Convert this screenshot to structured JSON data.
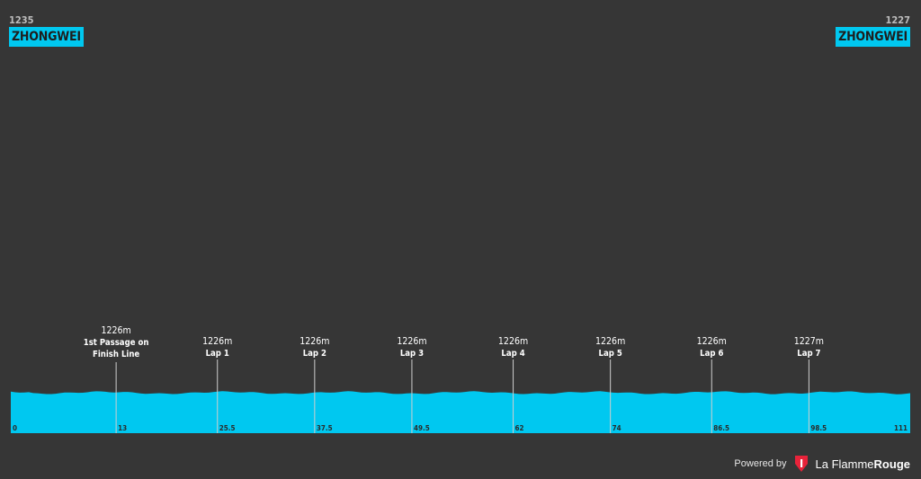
{
  "start": {
    "altitude": "1235",
    "town": "ZHONGWEI"
  },
  "finish": {
    "altitude": "1227",
    "town": "ZHONGWEI"
  },
  "footer": {
    "powered": "Powered by",
    "brand_regular": "La Flamme",
    "brand_bold": "Rouge"
  },
  "colors": {
    "background": "#363636",
    "profile": "#00c8f0",
    "marker_line": "#cfcfcf",
    "logo": "#e8233a"
  },
  "chart_data": {
    "type": "area",
    "xlim": [
      0,
      111
    ],
    "x_ticks": [
      "0",
      "13",
      "25.5",
      "37.5",
      "49.5",
      "62",
      "74",
      "86.5",
      "98.5",
      "111"
    ],
    "x_tick_values": [
      0,
      13,
      25.5,
      37.5,
      49.5,
      62,
      74,
      86.5,
      98.5,
      111
    ],
    "checkpoints": [
      {
        "km": 13,
        "altitude": "1226m",
        "name_lines": [
          "1st Passage on",
          "Finish Line"
        ]
      },
      {
        "km": 25.5,
        "altitude": "1226m",
        "name_lines": [
          "Lap 1"
        ]
      },
      {
        "km": 37.5,
        "altitude": "1226m",
        "name_lines": [
          "Lap 2"
        ]
      },
      {
        "km": 49.5,
        "altitude": "1226m",
        "name_lines": [
          "Lap 3"
        ]
      },
      {
        "km": 62,
        "altitude": "1226m",
        "name_lines": [
          "Lap 4"
        ]
      },
      {
        "km": 74,
        "altitude": "1226m",
        "name_lines": [
          "Lap 5"
        ]
      },
      {
        "km": 86.5,
        "altitude": "1226m",
        "name_lines": [
          "Lap 6"
        ]
      },
      {
        "km": 98.5,
        "altitude": "1227m",
        "name_lines": [
          "Lap  7"
        ]
      }
    ],
    "elevation": {
      "x": [
        0,
        13,
        25.5,
        37.5,
        49.5,
        62,
        74,
        86.5,
        98.5,
        111
      ],
      "y": [
        1235,
        1226,
        1226,
        1226,
        1226,
        1226,
        1226,
        1226,
        1227,
        1227
      ]
    }
  }
}
